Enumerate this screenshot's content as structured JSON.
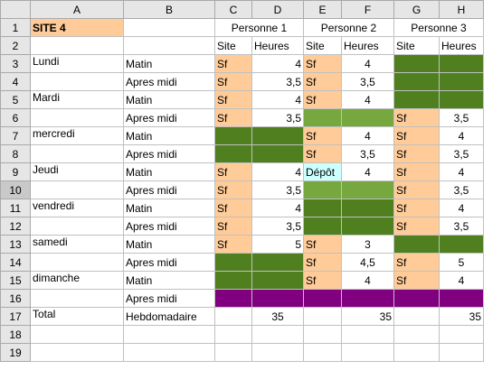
{
  "columns": [
    "A",
    "B",
    "C",
    "D",
    "E",
    "F",
    "G",
    "H"
  ],
  "active_row": 10,
  "colors": {
    "peach": "#ffcc99",
    "dark_green": "#4f7f1f",
    "light_green": "#77a83f",
    "purple": "#800080",
    "cyan": "#ccffff"
  },
  "rows": [
    {
      "num": "1",
      "cells": [
        {
          "text": "SITE 4",
          "bg": "peach",
          "align": "l",
          "bold": true
        },
        {
          "text": ""
        },
        {
          "text": "Personne 1",
          "span": 2,
          "align": "c"
        },
        {
          "text": "Personne 2",
          "span": 2,
          "align": "c"
        },
        {
          "text": "Personne 3",
          "span": 2,
          "align": "c"
        }
      ]
    },
    {
      "num": "2",
      "cells": [
        {
          "text": ""
        },
        {
          "text": ""
        },
        {
          "text": "Site",
          "align": "l"
        },
        {
          "text": "Heures",
          "align": "l"
        },
        {
          "text": "Site",
          "align": "l"
        },
        {
          "text": "Heures",
          "align": "l"
        },
        {
          "text": "Site",
          "align": "l"
        },
        {
          "text": "Heures",
          "align": "l"
        }
      ]
    },
    {
      "num": "3",
      "cells": [
        {
          "text": "Lundi",
          "align": "l",
          "top": true
        },
        {
          "text": "Matin",
          "align": "l"
        },
        {
          "text": "Sf",
          "bg": "peach",
          "align": "l"
        },
        {
          "text": "4",
          "align": "r"
        },
        {
          "text": "Sf",
          "bg": "peach",
          "align": "l"
        },
        {
          "text": "4",
          "align": "c"
        },
        {
          "text": "",
          "bg": "dark_green"
        },
        {
          "text": "",
          "bg": "dark_green"
        }
      ]
    },
    {
      "num": "4",
      "cells": [
        {
          "text": ""
        },
        {
          "text": "Apres midi",
          "align": "l"
        },
        {
          "text": "Sf",
          "bg": "peach",
          "align": "l"
        },
        {
          "text": "3,5",
          "align": "r"
        },
        {
          "text": "Sf",
          "bg": "peach",
          "align": "l"
        },
        {
          "text": "3,5",
          "align": "c"
        },
        {
          "text": "",
          "bg": "dark_green"
        },
        {
          "text": "",
          "bg": "dark_green"
        }
      ]
    },
    {
      "num": "5",
      "cells": [
        {
          "text": "Mardi",
          "align": "l",
          "top": true
        },
        {
          "text": "Matin",
          "align": "l"
        },
        {
          "text": "Sf",
          "bg": "peach",
          "align": "l"
        },
        {
          "text": "4",
          "align": "r"
        },
        {
          "text": "Sf",
          "bg": "peach",
          "align": "l"
        },
        {
          "text": "4",
          "align": "c"
        },
        {
          "text": "",
          "bg": "dark_green"
        },
        {
          "text": "",
          "bg": "dark_green"
        }
      ]
    },
    {
      "num": "6",
      "cells": [
        {
          "text": ""
        },
        {
          "text": "Apres midi",
          "align": "l"
        },
        {
          "text": "Sf",
          "bg": "peach",
          "align": "l"
        },
        {
          "text": "3,5",
          "align": "r"
        },
        {
          "text": "",
          "bg": "light_green"
        },
        {
          "text": "",
          "bg": "light_green"
        },
        {
          "text": "Sf",
          "bg": "peach",
          "align": "l"
        },
        {
          "text": "3,5",
          "align": "c"
        }
      ]
    },
    {
      "num": "7",
      "cells": [
        {
          "text": "mercredi",
          "align": "l",
          "top": true
        },
        {
          "text": "Matin",
          "align": "l"
        },
        {
          "text": "",
          "bg": "dark_green"
        },
        {
          "text": "",
          "bg": "dark_green"
        },
        {
          "text": "Sf",
          "bg": "peach",
          "align": "l"
        },
        {
          "text": "4",
          "align": "c"
        },
        {
          "text": "Sf",
          "bg": "peach",
          "align": "l"
        },
        {
          "text": "4",
          "align": "c"
        }
      ]
    },
    {
      "num": "8",
      "cells": [
        {
          "text": ""
        },
        {
          "text": "Apres midi",
          "align": "l"
        },
        {
          "text": "",
          "bg": "dark_green"
        },
        {
          "text": "",
          "bg": "dark_green"
        },
        {
          "text": "Sf",
          "bg": "peach",
          "align": "l"
        },
        {
          "text": "3,5",
          "align": "c"
        },
        {
          "text": "Sf",
          "bg": "peach",
          "align": "l"
        },
        {
          "text": "3,5",
          "align": "c"
        }
      ]
    },
    {
      "num": "9",
      "cells": [
        {
          "text": "Jeudi",
          "align": "l",
          "top": true
        },
        {
          "text": "Matin",
          "align": "l"
        },
        {
          "text": "Sf",
          "bg": "peach",
          "align": "l"
        },
        {
          "text": "4",
          "align": "r"
        },
        {
          "text": "Dépôt",
          "bg": "cyan",
          "align": "l"
        },
        {
          "text": "4",
          "align": "c"
        },
        {
          "text": "Sf",
          "bg": "peach",
          "align": "l"
        },
        {
          "text": "4",
          "align": "c"
        }
      ]
    },
    {
      "num": "10",
      "cells": [
        {
          "text": ""
        },
        {
          "text": "Apres midi",
          "align": "l"
        },
        {
          "text": "Sf",
          "bg": "peach",
          "align": "l"
        },
        {
          "text": "3,5",
          "align": "r"
        },
        {
          "text": "",
          "bg": "light_green"
        },
        {
          "text": "",
          "bg": "light_green"
        },
        {
          "text": "Sf",
          "bg": "peach",
          "align": "l"
        },
        {
          "text": "3,5",
          "align": "c"
        }
      ]
    },
    {
      "num": "11",
      "cells": [
        {
          "text": "vendredi",
          "align": "l",
          "top": true
        },
        {
          "text": "Matin",
          "align": "l"
        },
        {
          "text": "Sf",
          "bg": "peach",
          "align": "l"
        },
        {
          "text": "4",
          "align": "r"
        },
        {
          "text": "",
          "bg": "dark_green"
        },
        {
          "text": "",
          "bg": "dark_green"
        },
        {
          "text": "Sf",
          "bg": "peach",
          "align": "l"
        },
        {
          "text": "4",
          "align": "c"
        }
      ]
    },
    {
      "num": "12",
      "cells": [
        {
          "text": ""
        },
        {
          "text": "Apres midi",
          "align": "l"
        },
        {
          "text": "Sf",
          "bg": "peach",
          "align": "l"
        },
        {
          "text": "3,5",
          "align": "r"
        },
        {
          "text": "",
          "bg": "dark_green"
        },
        {
          "text": "",
          "bg": "dark_green"
        },
        {
          "text": "Sf",
          "bg": "peach",
          "align": "l"
        },
        {
          "text": "3,5",
          "align": "c"
        }
      ]
    },
    {
      "num": "13",
      "cells": [
        {
          "text": "samedi",
          "align": "l",
          "top": true
        },
        {
          "text": "Matin",
          "align": "l"
        },
        {
          "text": "Sf",
          "bg": "peach",
          "align": "l"
        },
        {
          "text": "5",
          "align": "r"
        },
        {
          "text": "Sf",
          "bg": "peach",
          "align": "l"
        },
        {
          "text": "3",
          "align": "c"
        },
        {
          "text": "",
          "bg": "dark_green"
        },
        {
          "text": "",
          "bg": "dark_green"
        }
      ]
    },
    {
      "num": "14",
      "cells": [
        {
          "text": ""
        },
        {
          "text": "Apres midi",
          "align": "l"
        },
        {
          "text": "",
          "bg": "dark_green"
        },
        {
          "text": "",
          "bg": "dark_green"
        },
        {
          "text": "Sf",
          "bg": "peach",
          "align": "l"
        },
        {
          "text": "4,5",
          "align": "c"
        },
        {
          "text": "Sf",
          "bg": "peach",
          "align": "l"
        },
        {
          "text": "5",
          "align": "c"
        }
      ]
    },
    {
      "num": "15",
      "cells": [
        {
          "text": "dimanche",
          "align": "l",
          "top": true
        },
        {
          "text": "Matin",
          "align": "l"
        },
        {
          "text": "",
          "bg": "dark_green"
        },
        {
          "text": "",
          "bg": "dark_green"
        },
        {
          "text": "Sf",
          "bg": "peach",
          "align": "l"
        },
        {
          "text": "4",
          "align": "c"
        },
        {
          "text": "Sf",
          "bg": "peach",
          "align": "l"
        },
        {
          "text": "4",
          "align": "c"
        }
      ]
    },
    {
      "num": "16",
      "cells": [
        {
          "text": ""
        },
        {
          "text": "Apres midi",
          "align": "l"
        },
        {
          "text": "",
          "bg": "purple"
        },
        {
          "text": "",
          "bg": "purple"
        },
        {
          "text": "",
          "bg": "purple"
        },
        {
          "text": "",
          "bg": "purple"
        },
        {
          "text": "",
          "bg": "purple"
        },
        {
          "text": "",
          "bg": "purple"
        }
      ]
    },
    {
      "num": "17",
      "cells": [
        {
          "text": "Total",
          "align": "l",
          "top": true
        },
        {
          "text": "Hebdomadaire",
          "align": "l"
        },
        {
          "text": ""
        },
        {
          "text": "35",
          "align": "c"
        },
        {
          "text": ""
        },
        {
          "text": "35",
          "align": "r"
        },
        {
          "text": ""
        },
        {
          "text": "35",
          "align": "r"
        }
      ]
    },
    {
      "num": "18",
      "cells": [
        {
          "text": ""
        },
        {
          "text": ""
        },
        {
          "text": ""
        },
        {
          "text": ""
        },
        {
          "text": ""
        },
        {
          "text": ""
        },
        {
          "text": ""
        },
        {
          "text": ""
        }
      ]
    },
    {
      "num": "19",
      "cells": [
        {
          "text": ""
        },
        {
          "text": ""
        },
        {
          "text": ""
        },
        {
          "text": ""
        },
        {
          "text": ""
        },
        {
          "text": ""
        },
        {
          "text": ""
        },
        {
          "text": ""
        }
      ]
    }
  ]
}
